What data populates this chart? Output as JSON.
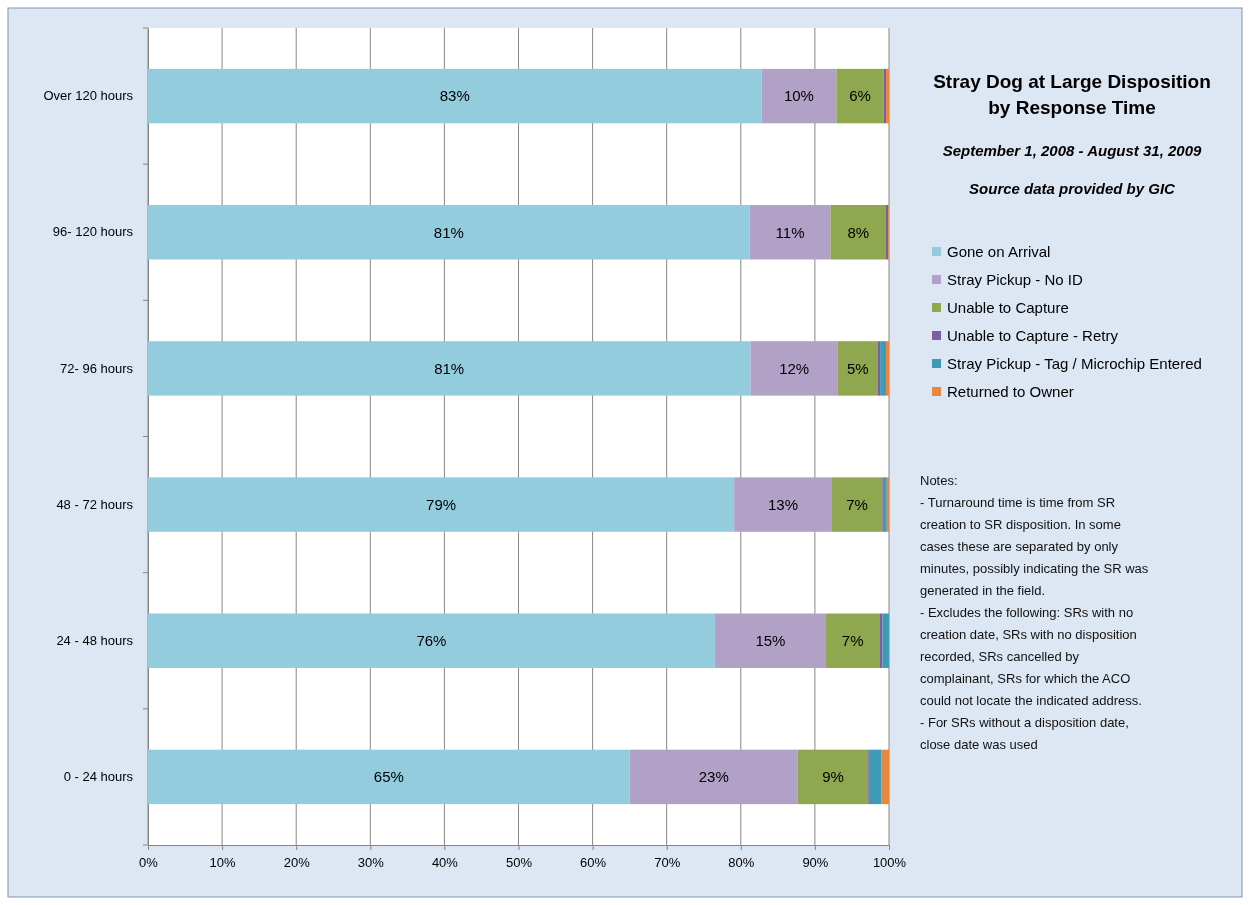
{
  "chart_data": {
    "type": "bar",
    "orientation": "horizontal",
    "stacked": true,
    "title": "Stray Dog at Large Disposition by Response Time",
    "subtitle": "September 1, 2008 - August 31, 2009",
    "categories": [
      "Over 120 hours",
      "96- 120 hours",
      "72- 96 hours",
      "48 - 72 hours",
      "24 - 48 hours",
      "0 - 24 hours"
    ],
    "series": [
      {
        "name": "Gone on Arrival",
        "color": "#93cddd",
        "values": [
          82.8,
          81.2,
          81.3,
          79.1,
          76.5,
          65
        ],
        "value_labels": [
          "83%",
          "81%",
          "81%",
          "79%",
          "76%",
          "65%"
        ]
      },
      {
        "name": "Stray Pickup - No ID",
        "color": "#b2a1c7",
        "values": [
          10.1,
          10.9,
          11.8,
          13.2,
          15,
          22.7
        ],
        "value_labels": [
          "10%",
          "11%",
          "12%",
          "13%",
          "15%",
          "23%"
        ]
      },
      {
        "name": "Unable to Capture",
        "color": "#8fa84f",
        "values": [
          6.4,
          7.5,
          5.4,
          6.8,
          7.2,
          9.5
        ],
        "value_labels": [
          "6%",
          "8%",
          "5%",
          "7%",
          "7%",
          "9%"
        ]
      },
      {
        "name": "Unable to Capture - Retry",
        "color": "#7b5ea7",
        "values": [
          0.3,
          0.3,
          0.3,
          0.2,
          0.4,
          0.1
        ]
      },
      {
        "name": "Stray Pickup - Tag / Microchip Entered",
        "color": "#3f9bb5",
        "values": [
          0,
          0,
          0.8,
          0.4,
          0.9,
          1.7
        ]
      },
      {
        "name": "Returned to Owner",
        "color": "#e8873f",
        "values": [
          0.4,
          0.1,
          0.4,
          0.3,
          0,
          1
        ]
      }
    ],
    "xlim": [
      0,
      100
    ],
    "xticks": [
      {
        "value": 0,
        "label": "0%"
      },
      {
        "value": 10,
        "label": "10%"
      },
      {
        "value": 20,
        "label": "20%"
      },
      {
        "value": 30,
        "label": "30%"
      },
      {
        "value": 40,
        "label": "40%"
      },
      {
        "value": 50,
        "label": "50%"
      },
      {
        "value": 60,
        "label": "60%"
      },
      {
        "value": 70,
        "label": "70%"
      },
      {
        "value": 80,
        "label": "80%"
      },
      {
        "value": 90,
        "label": "90%"
      },
      {
        "value": 100,
        "label": "100%"
      }
    ],
    "grid": "x",
    "legend": "right",
    "annotations": [
      "Source data provided by GIC",
      "Notes:",
      "- Turnaround time is time from SR creation to SR disposition. In some cases these are separated by only minutes, possibly indicating the SR was generated in the field.",
      "- Excludes the following: SRs with no creation date, SRs with no disposition recorded, SRs cancelled by complainant, SRs for which the ACO could not locate the indicated address.",
      "- For SRs without a disposition date, close date was used"
    ]
  }
}
